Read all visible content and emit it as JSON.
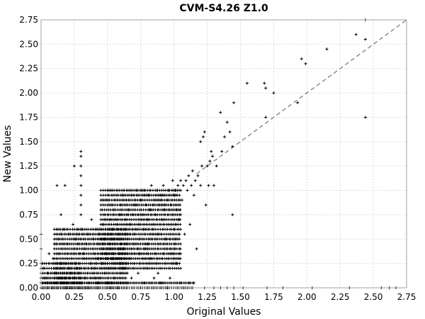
{
  "chart_data": {
    "type": "scatter",
    "title": "CVM-S4.26 Z1.0",
    "xlabel": "Original Values",
    "ylabel": "New Values",
    "xlim": [
      0,
      2.75
    ],
    "ylim": [
      0,
      2.75
    ],
    "xticks": [
      "0.00",
      "0.25",
      "0.50",
      "0.75",
      "1.00",
      "1.25",
      "1.50",
      "1.75",
      "2.00",
      "2.25",
      "2.50",
      "2.75"
    ],
    "yticks": [
      "0.00",
      "0.25",
      "0.50",
      "0.75",
      "1.00",
      "1.25",
      "1.50",
      "1.75",
      "2.00",
      "2.25",
      "2.50",
      "2.75"
    ],
    "grid": true,
    "marker": "+",
    "reference_line": {
      "style": "dashed",
      "from": [
        1.17,
        1.17
      ],
      "to": [
        2.75,
        2.75
      ]
    },
    "series": [
      {
        "points": [
          [
            0.0,
            0.55
          ],
          [
            0.0,
            0.4
          ],
          [
            0.01,
            0.25
          ],
          [
            0.02,
            0.2
          ],
          [
            0.03,
            0.1
          ],
          [
            0.05,
            0.05
          ],
          [
            0.05,
            0.15
          ],
          [
            0.06,
            0.35
          ],
          [
            0.08,
            0.05
          ],
          [
            0.09,
            0.3
          ],
          [
            0.1,
            0.15
          ],
          [
            0.1,
            0.45
          ],
          [
            0.12,
            1.05
          ],
          [
            0.12,
            0.2
          ],
          [
            0.13,
            0.5
          ],
          [
            0.14,
            0.1
          ],
          [
            0.15,
            0.55
          ],
          [
            0.15,
            0.75
          ],
          [
            0.16,
            0.4
          ],
          [
            0.17,
            0.6
          ],
          [
            0.18,
            1.05
          ],
          [
            0.18,
            0.25
          ],
          [
            0.19,
            0.05
          ],
          [
            0.2,
            0.35
          ],
          [
            0.2,
            0.45
          ],
          [
            0.21,
            0.55
          ],
          [
            0.22,
            0.15
          ],
          [
            0.23,
            0.3
          ],
          [
            0.24,
            0.65
          ],
          [
            0.25,
            0.4
          ],
          [
            0.25,
            1.25
          ],
          [
            0.26,
            0.5
          ],
          [
            0.27,
            0.2
          ],
          [
            0.28,
            0.6
          ],
          [
            0.28,
            0.45
          ],
          [
            0.29,
            0.35
          ],
          [
            0.3,
            1.4
          ],
          [
            0.3,
            1.35
          ],
          [
            0.3,
            1.25
          ],
          [
            0.3,
            1.15
          ],
          [
            0.3,
            1.05
          ],
          [
            0.3,
            0.95
          ],
          [
            0.3,
            0.85
          ],
          [
            0.3,
            0.75
          ],
          [
            0.31,
            0.6
          ],
          [
            0.32,
            0.5
          ],
          [
            0.33,
            0.4
          ],
          [
            0.34,
            0.3
          ],
          [
            0.35,
            0.55
          ],
          [
            0.36,
            0.45
          ],
          [
            0.37,
            0.25
          ],
          [
            0.38,
            0.7
          ],
          [
            0.39,
            0.5
          ],
          [
            0.4,
            0.35
          ],
          [
            0.41,
            0.6
          ],
          [
            0.42,
            0.45
          ],
          [
            0.43,
            0.3
          ],
          [
            0.44,
            0.55
          ],
          [
            0.45,
            0.4
          ],
          [
            0.46,
            0.2
          ],
          [
            0.47,
            0.65
          ],
          [
            0.48,
            0.5
          ],
          [
            0.48,
            0.75
          ],
          [
            0.49,
            0.35
          ],
          [
            0.5,
            0.55
          ],
          [
            0.51,
            0.45
          ],
          [
            0.52,
            0.7
          ],
          [
            0.53,
            0.3
          ],
          [
            0.54,
            0.6
          ],
          [
            0.55,
            0.8
          ],
          [
            0.55,
            0.5
          ],
          [
            0.56,
            0.4
          ],
          [
            0.57,
            0.65
          ],
          [
            0.58,
            0.55
          ],
          [
            0.59,
            0.75
          ],
          [
            0.6,
            0.45
          ],
          [
            0.6,
            0.85
          ],
          [
            0.61,
            0.35
          ],
          [
            0.62,
            0.6
          ],
          [
            0.63,
            0.7
          ],
          [
            0.64,
            0.9
          ],
          [
            0.65,
            0.5
          ],
          [
            0.66,
            0.8
          ],
          [
            0.67,
            0.65
          ],
          [
            0.68,
            0.95
          ],
          [
            0.68,
            0.4
          ],
          [
            0.69,
            0.75
          ],
          [
            0.7,
            0.55
          ],
          [
            0.71,
            0.85
          ],
          [
            0.72,
            1.0
          ],
          [
            0.73,
            0.65
          ],
          [
            0.74,
            0.5
          ],
          [
            0.75,
            0.9
          ],
          [
            0.76,
            0.75
          ],
          [
            0.77,
            0.6
          ],
          [
            0.78,
            1.0
          ],
          [
            0.79,
            0.85
          ],
          [
            0.8,
            0.45
          ],
          [
            0.8,
            0.7
          ],
          [
            0.81,
            0.95
          ],
          [
            0.82,
            0.8
          ],
          [
            0.83,
            1.05
          ],
          [
            0.84,
            0.6
          ],
          [
            0.85,
            0.9
          ],
          [
            0.86,
            0.75
          ],
          [
            0.87,
            1.0
          ],
          [
            0.88,
            0.55
          ],
          [
            0.89,
            0.85
          ],
          [
            0.9,
            0.95
          ],
          [
            0.91,
            0.7
          ],
          [
            0.92,
            1.05
          ],
          [
            0.93,
            0.8
          ],
          [
            0.94,
            0.5
          ],
          [
            0.95,
            0.9
          ],
          [
            0.96,
            1.0
          ],
          [
            0.97,
            0.65
          ],
          [
            0.98,
            0.85
          ],
          [
            0.99,
            1.1
          ],
          [
            1.0,
            0.95
          ],
          [
            1.0,
            0.6
          ],
          [
            1.01,
            1.0
          ],
          [
            1.02,
            0.8
          ],
          [
            1.03,
            1.05
          ],
          [
            1.04,
            0.7
          ],
          [
            1.05,
            1.1
          ],
          [
            1.06,
            0.9
          ],
          [
            1.07,
            1.05
          ],
          [
            1.08,
            0.55
          ],
          [
            1.09,
            1.1
          ],
          [
            1.1,
            1.0
          ],
          [
            1.11,
            1.15
          ],
          [
            1.12,
            0.65
          ],
          [
            1.13,
            1.05
          ],
          [
            1.14,
            1.2
          ],
          [
            1.15,
            0.95
          ],
          [
            1.16,
            1.1
          ],
          [
            1.17,
            0.4
          ],
          [
            1.18,
            1.15
          ],
          [
            1.2,
            1.05
          ],
          [
            1.2,
            1.5
          ],
          [
            1.21,
            1.25
          ],
          [
            1.22,
            1.55
          ],
          [
            1.23,
            1.6
          ],
          [
            1.24,
            0.85
          ],
          [
            1.25,
            1.25
          ],
          [
            1.26,
            1.05
          ],
          [
            1.27,
            1.3
          ],
          [
            1.28,
            1.4
          ],
          [
            1.29,
            1.35
          ],
          [
            1.3,
            1.05
          ],
          [
            1.32,
            1.25
          ],
          [
            1.35,
            1.8
          ],
          [
            1.36,
            1.4
          ],
          [
            1.38,
            1.55
          ],
          [
            1.4,
            1.7
          ],
          [
            1.42,
            1.6
          ],
          [
            1.44,
            0.75
          ],
          [
            1.44,
            1.45
          ],
          [
            1.45,
            1.9
          ],
          [
            1.55,
            2.1
          ],
          [
            1.68,
            2.1
          ],
          [
            1.69,
            2.05
          ],
          [
            1.69,
            1.75
          ],
          [
            1.75,
            2.0
          ],
          [
            1.93,
            1.9
          ],
          [
            1.96,
            2.35
          ],
          [
            1.99,
            2.3
          ],
          [
            2.15,
            2.45
          ],
          [
            2.37,
            2.6
          ],
          [
            2.44,
            2.75
          ],
          [
            2.44,
            2.55
          ],
          [
            2.44,
            1.75
          ],
          [
            1.52,
            0.0
          ],
          [
            1.7,
            0.0
          ],
          [
            1.82,
            0.0
          ],
          [
            2.04,
            0.0
          ],
          [
            2.32,
            0.0
          ],
          [
            2.56,
            0.0
          ],
          [
            2.62,
            0.0
          ],
          [
            2.67,
            0.0
          ],
          [
            1.3,
            0.0
          ],
          [
            1.35,
            0.0
          ],
          [
            1.23,
            0.0
          ],
          [
            1.15,
            0.05
          ],
          [
            1.1,
            0.0
          ],
          [
            1.05,
            0.05
          ],
          [
            0.97,
            0.1
          ],
          [
            0.95,
            0.0
          ],
          [
            0.9,
            0.05
          ],
          [
            0.88,
            0.15
          ],
          [
            0.85,
            0.1
          ],
          [
            0.83,
            0.0
          ],
          [
            0.8,
            0.2
          ],
          [
            0.78,
            0.05
          ],
          [
            0.75,
            0.0
          ],
          [
            0.73,
            0.15
          ],
          [
            0.7,
            0.25
          ],
          [
            0.68,
            0.1
          ],
          [
            0.65,
            0.05
          ],
          [
            0.63,
            0.2
          ],
          [
            0.6,
            0.15
          ],
          [
            0.58,
            0.0
          ],
          [
            0.55,
            0.1
          ],
          [
            0.53,
            0.05
          ],
          [
            0.5,
            0.25
          ],
          [
            0.48,
            0.15
          ],
          [
            0.45,
            0.1
          ],
          [
            0.43,
            0.05
          ],
          [
            0.4,
            0.2
          ],
          [
            0.38,
            0.0
          ],
          [
            0.35,
            0.15
          ],
          [
            0.33,
            0.1
          ],
          [
            0.3,
            0.05
          ],
          [
            0.28,
            0.0
          ],
          [
            0.25,
            0.1
          ],
          [
            0.23,
            0.05
          ],
          [
            0.2,
            0.0
          ],
          [
            0.18,
            0.1
          ],
          [
            0.15,
            0.05
          ],
          [
            0.13,
            0.0
          ],
          [
            0.1,
            0.1
          ],
          [
            0.08,
            0.0
          ],
          [
            0.05,
            0.0
          ],
          [
            0.03,
            0.05
          ],
          [
            0.01,
            0.0
          ],
          [
            0.0,
            0.1
          ],
          [
            0.0,
            0.05
          ],
          [
            0.0,
            0.0
          ],
          [
            1.45,
            0.0
          ],
          [
            1.4,
            0.0
          ],
          [
            0.92,
            0.35
          ],
          [
            0.96,
            0.3
          ],
          [
            1.0,
            0.4
          ],
          [
            1.02,
            0.25
          ],
          [
            0.9,
            0.45
          ],
          [
            0.86,
            0.35
          ],
          [
            0.82,
            0.3
          ],
          [
            0.78,
            0.4
          ],
          [
            0.74,
            0.35
          ],
          [
            0.7,
            0.45
          ],
          [
            0.66,
            0.3
          ],
          [
            0.62,
            0.4
          ],
          [
            0.58,
            0.35
          ],
          [
            0.54,
            0.3
          ],
          [
            0.52,
            0.4
          ],
          [
            0.46,
            0.35
          ],
          [
            0.42,
            0.25
          ],
          [
            0.38,
            0.2
          ],
          [
            0.34,
            0.45
          ],
          [
            0.32,
            0.35
          ]
        ]
      }
    ],
    "dense_clusters": [
      {
        "xrange": [
          0.0,
          0.3
        ],
        "yrange": [
          0.0,
          0.25
        ]
      },
      {
        "xrange": [
          0.1,
          0.65
        ],
        "yrange": [
          0.0,
          0.6
        ]
      },
      {
        "xrange": [
          0.45,
          1.05
        ],
        "yrange": [
          0.2,
          1.0
        ]
      },
      {
        "xrange": [
          0.0,
          1.15
        ],
        "yrange": [
          0.0,
          0.05
        ]
      }
    ]
  }
}
